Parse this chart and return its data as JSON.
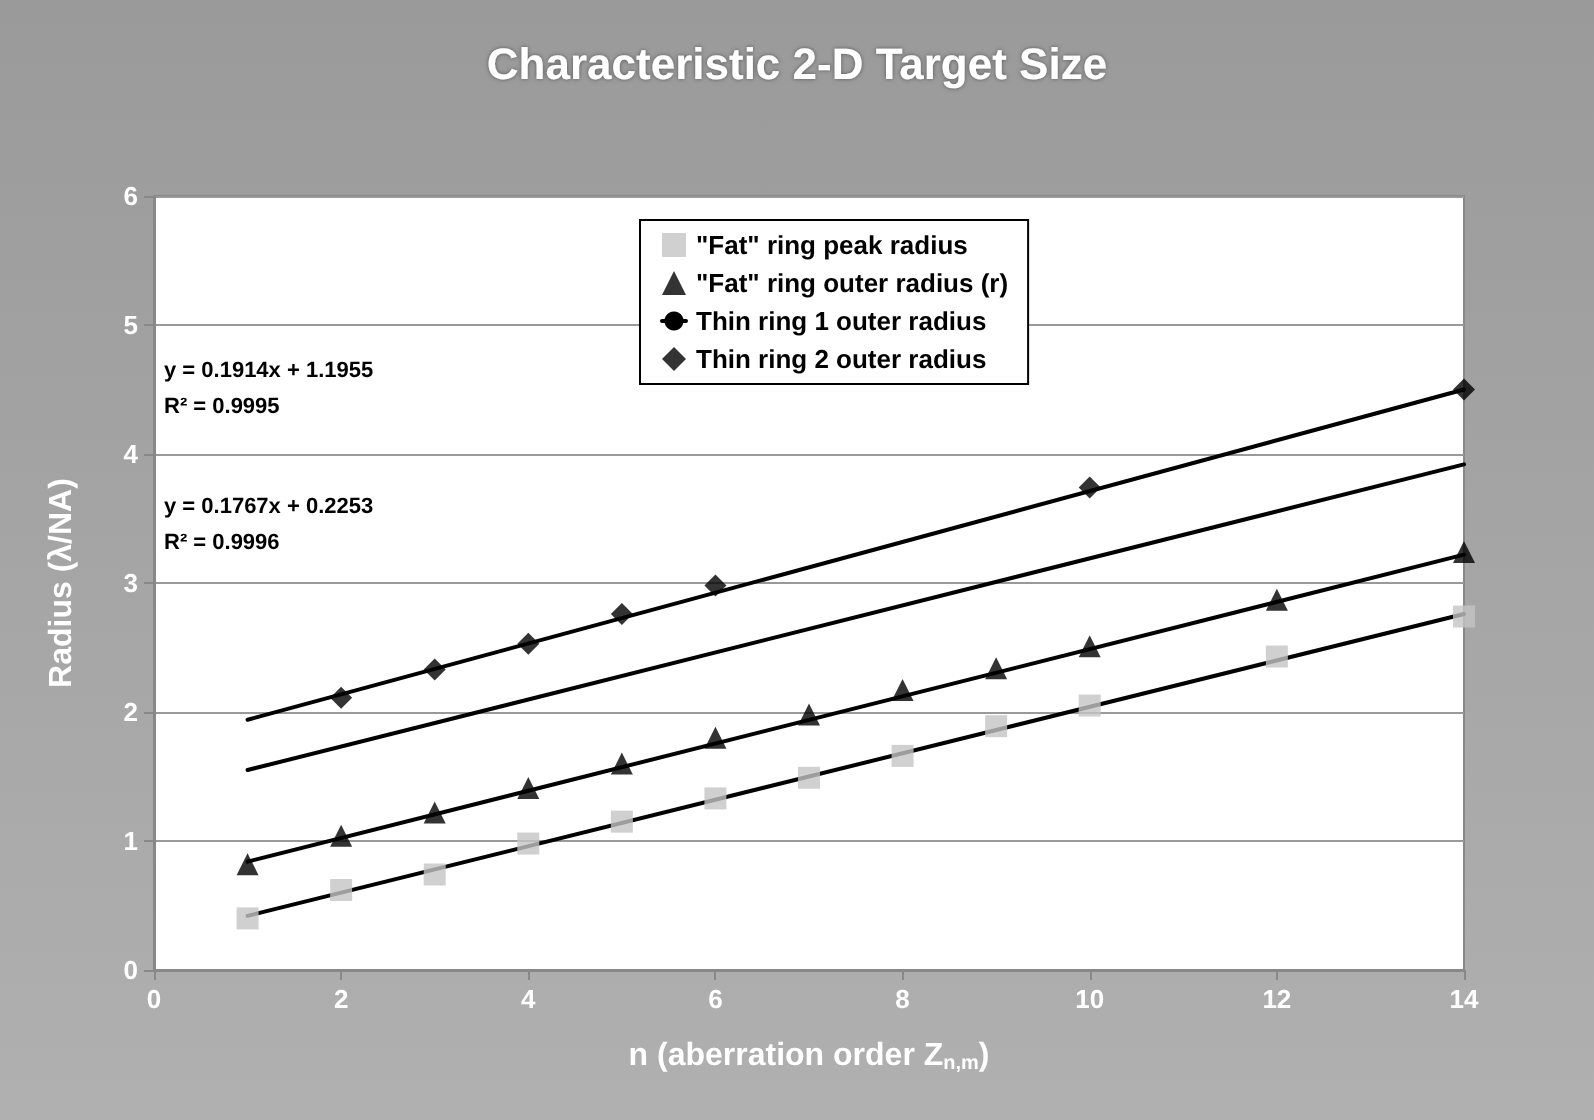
{
  "chart_data": {
    "type": "scatter",
    "title": "Characteristic 2-D Target Size",
    "xlabel": "n (aberration order Z$_{n,m}$)",
    "ylabel": "Radius (λ/NA)",
    "xlim": [
      0,
      14
    ],
    "xticks": [
      0,
      2,
      4,
      6,
      8,
      10,
      12,
      14
    ],
    "ylim": [
      0,
      6
    ],
    "yticks": [
      0,
      1,
      2,
      3,
      4,
      5,
      6
    ],
    "grid": "y",
    "legend": "top",
    "annotations": [
      "y = 0.1914x + 1.1955",
      "R² = 0.9995",
      "y = 0.1767x + 0.2253",
      "R² = 0.9996"
    ],
    "series": [
      {
        "name": "\"Fat\" ring peak radius",
        "marker": "square",
        "color": "#c4c4c4",
        "x": [
          1,
          2,
          3,
          4,
          5,
          6,
          7,
          8,
          9,
          10,
          12,
          14
        ],
        "values": [
          0.4,
          0.62,
          0.74,
          0.98,
          1.15,
          1.33,
          1.49,
          1.66,
          1.89,
          2.05,
          2.43,
          2.74
        ]
      },
      {
        "name": "\"Fat\" ring outer radius (r)",
        "marker": "triangle",
        "color": "#000000",
        "x": [
          1,
          2,
          3,
          4,
          5,
          6,
          7,
          8,
          9,
          10,
          12,
          14
        ],
        "values": [
          0.82,
          1.04,
          1.22,
          1.41,
          1.6,
          1.8,
          1.98,
          2.17,
          2.34,
          2.51,
          2.87,
          3.24
        ]
      },
      {
        "name": "Thin ring 1 outer radius",
        "type": "line",
        "marker": "none",
        "color": "#000000",
        "x": [
          1,
          14
        ],
        "values": [
          1.55,
          3.92
        ]
      },
      {
        "name": "Thin ring 2 outer radius",
        "marker": "diamond",
        "color": "#000000",
        "x": [
          2,
          3,
          4,
          5,
          6,
          10,
          14
        ],
        "values": [
          2.11,
          2.33,
          2.53,
          2.76,
          2.98,
          3.74,
          4.5
        ]
      },
      {
        "type": "line",
        "marker": "none",
        "color": "#000000",
        "x": [
          1,
          14
        ],
        "values": [
          0.42,
          2.76
        ]
      },
      {
        "type": "line",
        "marker": "none",
        "color": "#000000",
        "x": [
          1,
          14
        ],
        "values": [
          0.84,
          3.22
        ]
      },
      {
        "type": "line",
        "marker": "none",
        "color": "#000000",
        "x": [
          1,
          14
        ],
        "values": [
          1.94,
          4.5
        ]
      }
    ]
  }
}
